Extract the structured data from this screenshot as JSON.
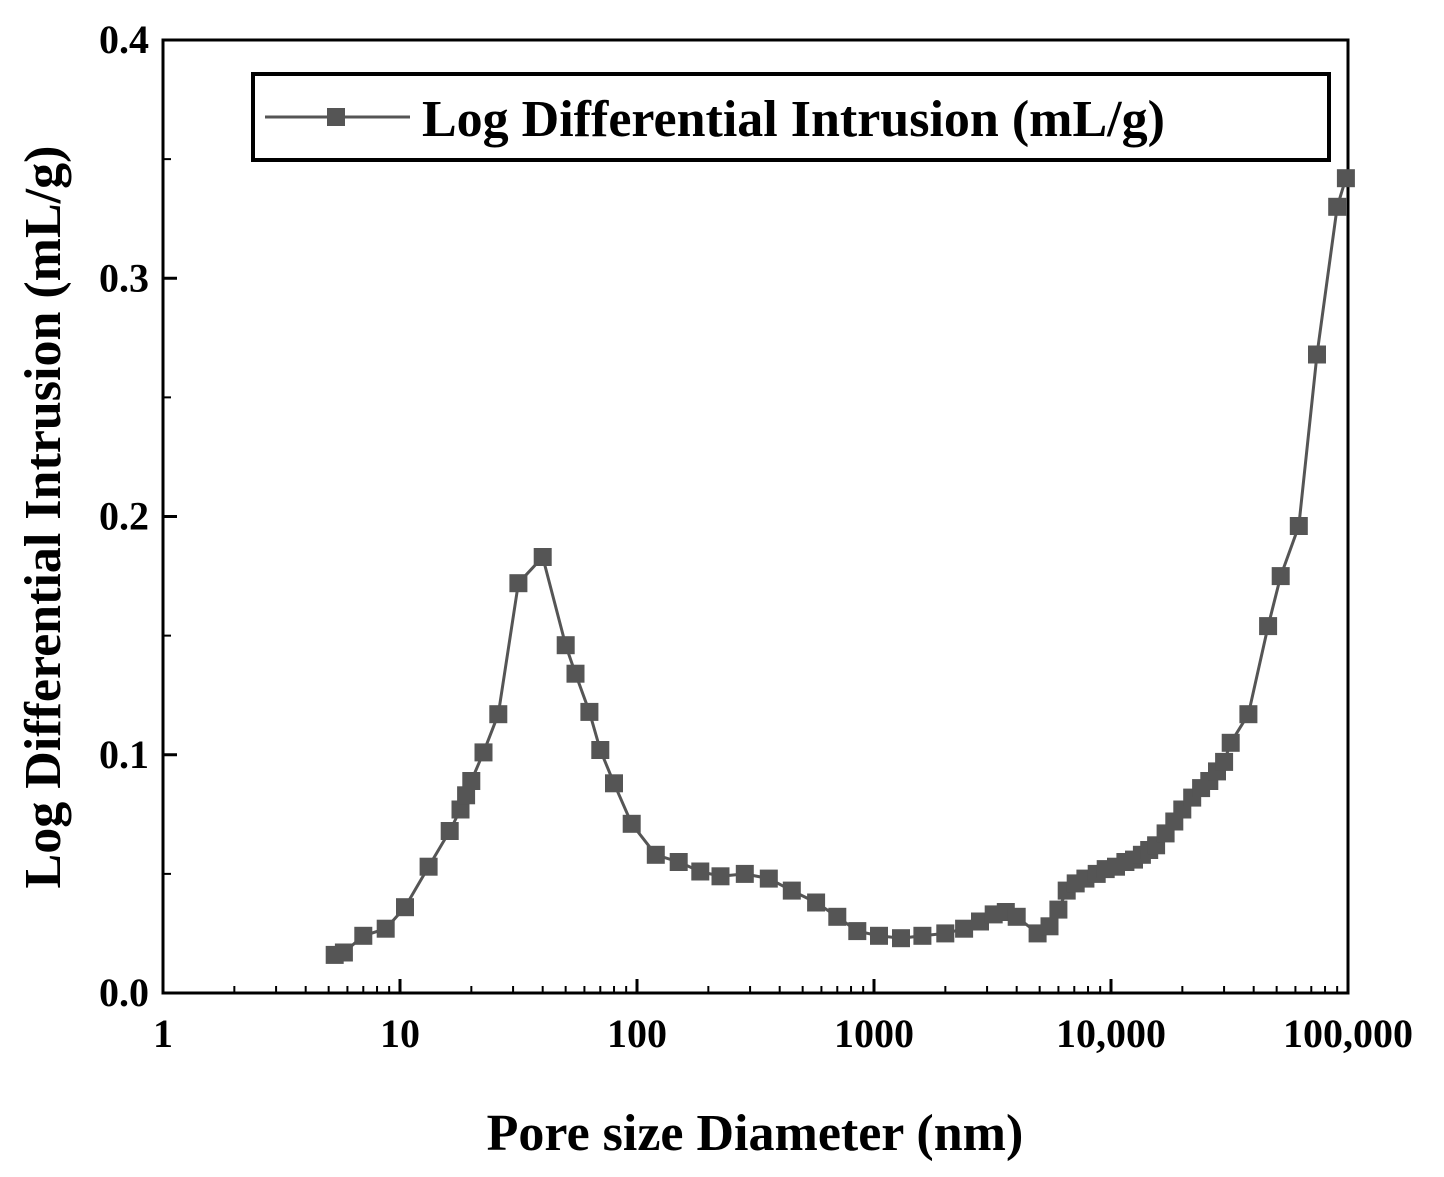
{
  "chart_data": {
    "type": "line",
    "title": "",
    "xlabel": "Pore size Diameter (nm)",
    "ylabel": "Log Differential Intrusion (mL/g)",
    "xscale": "log",
    "xlim": [
      1,
      100000
    ],
    "ylim": [
      0,
      0.4
    ],
    "grid": false,
    "legend_position": "top-right",
    "x_ticks": [
      {
        "value": 1,
        "label": "1"
      },
      {
        "value": 10,
        "label": "10"
      },
      {
        "value": 100,
        "label": "100"
      },
      {
        "value": 1000,
        "label": "1000"
      },
      {
        "value": 10000,
        "label": "10,000"
      },
      {
        "value": 100000,
        "label": "100,000"
      }
    ],
    "y_ticks": [
      {
        "value": 0.0,
        "label": "0.0"
      },
      {
        "value": 0.1,
        "label": "0.1"
      },
      {
        "value": 0.2,
        "label": "0.2"
      },
      {
        "value": 0.3,
        "label": "0.3"
      },
      {
        "value": 0.4,
        "label": "0.4"
      }
    ],
    "series": [
      {
        "name": "Log Differential Intrusion (mL/g)",
        "color": "#555555",
        "marker": "square",
        "x": [
          5.3,
          5.8,
          7.0,
          8.7,
          10.5,
          13.2,
          16.2,
          18.0,
          19.0,
          20.0,
          22.5,
          26.0,
          31.6,
          40.0,
          50.0,
          55.0,
          63.0,
          70.0,
          80.0,
          95.0,
          120.0,
          150.0,
          185.0,
          225.0,
          285.0,
          360.0,
          450.0,
          570.0,
          700.0,
          850.0,
          1050.0,
          1300.0,
          1600.0,
          2000.0,
          2400.0,
          2800.0,
          3200.0,
          3600.0,
          4000.0,
          4900.0,
          5500.0,
          6000.0,
          6500.0,
          7100.0,
          7800.0,
          8700.0,
          9500.0,
          10500.0,
          11500.0,
          12500.0,
          13500.0,
          14500.0,
          15500.0,
          17000.0,
          18500.0,
          20000.0,
          22000.0,
          24000.0,
          26000.0,
          28000.0,
          30000.0,
          32000.0,
          38000.0,
          46000.0,
          52000.0,
          62000.0,
          74000.0,
          90000.0,
          98000.0
        ],
        "y": [
          0.016,
          0.017,
          0.024,
          0.027,
          0.036,
          0.053,
          0.068,
          0.077,
          0.083,
          0.089,
          0.101,
          0.117,
          0.172,
          0.183,
          0.146,
          0.134,
          0.118,
          0.102,
          0.088,
          0.071,
          0.058,
          0.055,
          0.051,
          0.049,
          0.05,
          0.048,
          0.043,
          0.038,
          0.032,
          0.026,
          0.024,
          0.023,
          0.024,
          0.025,
          0.027,
          0.03,
          0.033,
          0.034,
          0.032,
          0.025,
          0.028,
          0.035,
          0.043,
          0.046,
          0.048,
          0.05,
          0.052,
          0.053,
          0.055,
          0.056,
          0.058,
          0.06,
          0.062,
          0.067,
          0.072,
          0.077,
          0.082,
          0.086,
          0.089,
          0.093,
          0.097,
          0.105,
          0.117,
          0.154,
          0.175,
          0.196,
          0.268,
          0.33,
          0.342
        ]
      }
    ]
  }
}
